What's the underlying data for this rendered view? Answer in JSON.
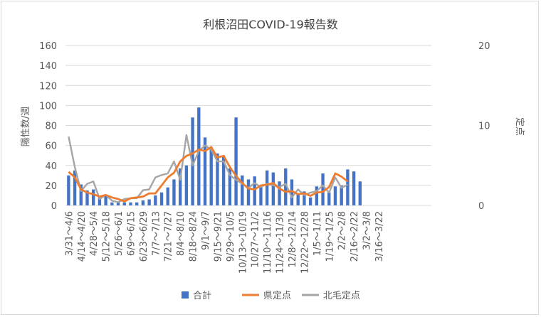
{
  "chart_data": {
    "type": "bar",
    "title": "利根沼田COVID-19報告数",
    "ylabel": "陽性数/週",
    "y2label": "定点",
    "ylim": [
      0,
      160
    ],
    "y2lim": [
      0,
      20
    ],
    "yticks": [
      0,
      20,
      40,
      60,
      80,
      100,
      120,
      140,
      160
    ],
    "y2ticks": [
      0,
      10,
      20
    ],
    "grid": true,
    "legend_position": "bottom",
    "x_tick_labels": [
      "3/31～4/6",
      "4/14～4/20",
      "4/28～5/4",
      "5/12～5/18",
      "5/26～6/1",
      "6/9～6/15",
      "6/23～6/29",
      "7/7～7/13",
      "7/21～7/27",
      "8/4～8/10",
      "8/18～8/24",
      "9/1～9/7",
      "9/15～9/21",
      "9/29～10/5",
      "10/13～10/19",
      "10/27～11/2",
      "11/10～11/16",
      "11/24～11/30",
      "12/8～12/14",
      "12/22～12/28",
      "1/5～1/11",
      "1/19～1/25",
      "2/2～2/8",
      "2/16～2/22",
      "3/2～3/8",
      "3/16～3/22"
    ],
    "series": [
      {
        "name": "合計",
        "kind": "bar",
        "axis": "left",
        "color": "#4472C4",
        "values": [
          30,
          35,
          21,
          15,
          16,
          8,
          10,
          3,
          3,
          3,
          3,
          3,
          5,
          6,
          10,
          13,
          18,
          26,
          37,
          40,
          88,
          98,
          68,
          58,
          52,
          50,
          37,
          88,
          30,
          26,
          29,
          20,
          35,
          33,
          24,
          37,
          26,
          12,
          14,
          8,
          19,
          32,
          13,
          19,
          20,
          36,
          34,
          24,
          null,
          null,
          null,
          null,
          null,
          null,
          null,
          null,
          null,
          null,
          null
        ]
      },
      {
        "name": "県定点",
        "kind": "line",
        "axis": "right",
        "color": "#ED7D31",
        "values": [
          4.2,
          3.5,
          2.0,
          1.6,
          1.4,
          1.1,
          1.3,
          1.0,
          0.8,
          0.5,
          0.9,
          1.0,
          1.1,
          1.5,
          1.5,
          2.5,
          3.5,
          4.1,
          5.5,
          6.2,
          6.5,
          7.0,
          6.8,
          7.3,
          6.0,
          6.2,
          4.8,
          3.7,
          2.8,
          2.1,
          2.0,
          2.5,
          2.6,
          2.8,
          2.1,
          1.7,
          1.8,
          1.4,
          1.5,
          1.2,
          1.6,
          1.7,
          2.3,
          4.0,
          3.6,
          3.0,
          null,
          null,
          null,
          null,
          null,
          null,
          null,
          null,
          null,
          null,
          null,
          null,
          null
        ]
      },
      {
        "name": "北毛定点",
        "kind": "line",
        "axis": "right",
        "color": "#A5A5A5",
        "values": [
          8.6,
          4.8,
          1.8,
          2.7,
          3.0,
          0.8,
          1.3,
          0.6,
          0.4,
          0.8,
          0.9,
          0.9,
          1.9,
          2.0,
          3.5,
          3.8,
          4.0,
          5.5,
          3.2,
          8.8,
          5.0,
          6.8,
          7.5,
          7.0,
          5.5,
          5.5,
          3.8,
          3.2,
          2.7,
          2.2,
          2.8,
          2.3,
          2.7,
          2.5,
          2.3,
          2.7,
          1.0,
          2.0,
          1.3,
          1.6,
          1.8,
          2.5,
          1.6,
          3.5,
          2.2,
          2.6,
          null,
          null,
          null,
          null,
          null,
          null,
          null,
          null,
          null,
          null,
          null,
          null,
          null
        ]
      }
    ]
  }
}
